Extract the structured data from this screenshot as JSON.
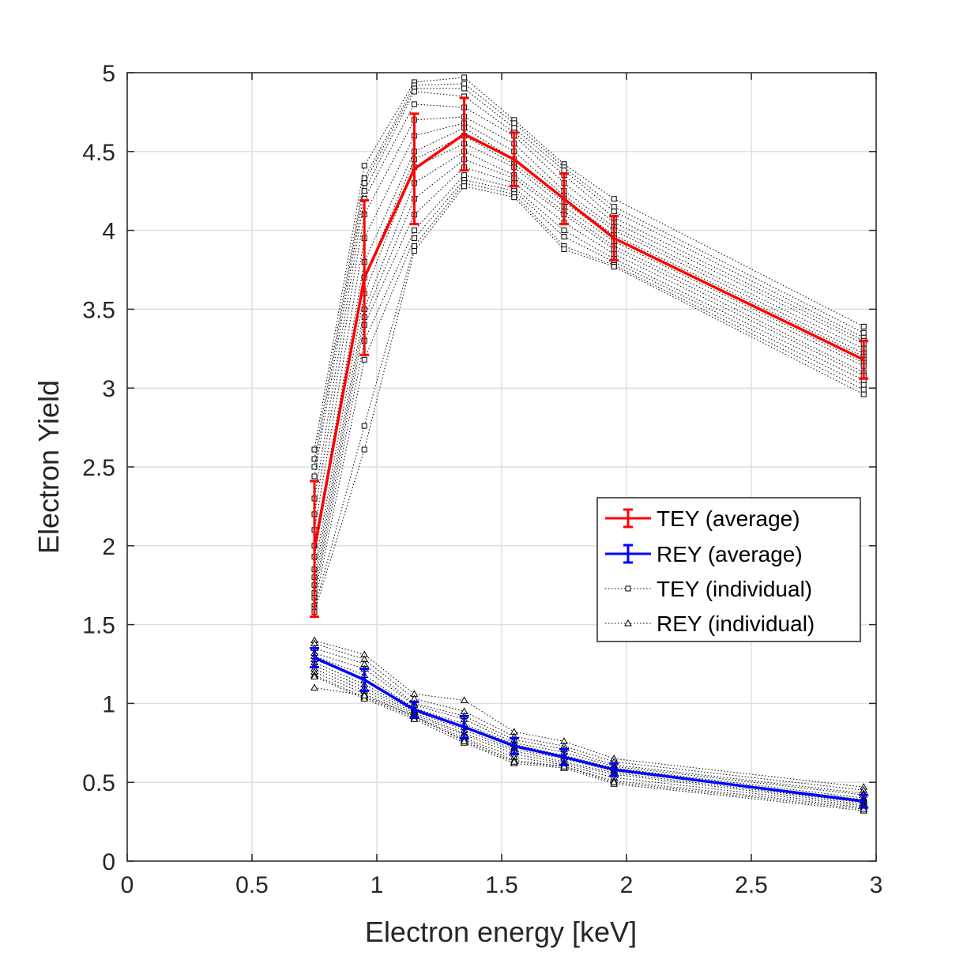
{
  "chart_data": {
    "type": "line",
    "title": "",
    "xlabel": "Electron energy [keV]",
    "ylabel": "Electron Yield",
    "xlim": [
      0,
      3
    ],
    "ylim": [
      0,
      5
    ],
    "xticks": [
      0,
      0.5,
      1,
      1.5,
      2,
      2.5,
      3
    ],
    "xtick_labels": [
      "0",
      "0.5",
      "1",
      "1.5",
      "2",
      "2.5",
      "3"
    ],
    "yticks": [
      0,
      0.5,
      1,
      1.5,
      2,
      2.5,
      3,
      3.5,
      4,
      4.5,
      5
    ],
    "ytick_labels": [
      "0",
      "0.5",
      "1",
      "1.5",
      "2",
      "2.5",
      "3",
      "3.5",
      "4",
      "4.5",
      "5"
    ],
    "grid": true,
    "legend_position": "center-right",
    "x": [
      0.75,
      0.95,
      1.15,
      1.35,
      1.55,
      1.75,
      1.95,
      2.95
    ],
    "series": [
      {
        "name": "TEY (average)",
        "color": "#ff0000",
        "style": "solid-errorbar",
        "values": [
          1.98,
          3.7,
          4.39,
          4.61,
          4.45,
          4.2,
          3.95,
          3.18
        ],
        "errors": [
          0.43,
          0.49,
          0.35,
          0.23,
          0.17,
          0.16,
          0.14,
          0.12
        ]
      },
      {
        "name": "REY (average)",
        "color": "#0000ff",
        "style": "solid-errorbar",
        "values": [
          1.29,
          1.15,
          0.96,
          0.85,
          0.73,
          0.66,
          0.58,
          0.38
        ],
        "errors": [
          0.06,
          0.07,
          0.05,
          0.07,
          0.05,
          0.05,
          0.04,
          0.04
        ]
      },
      {
        "name": "TEY (individual)",
        "color": "#000000",
        "style": "dotted-square",
        "runs": [
          [
            2.61,
            4.41,
            4.94,
            4.97,
            4.7,
            4.42,
            4.2,
            3.39
          ],
          [
            2.55,
            4.33,
            4.92,
            4.93,
            4.68,
            4.4,
            4.15,
            3.35
          ],
          [
            2.5,
            4.3,
            4.9,
            4.9,
            4.65,
            4.38,
            4.12,
            3.32
          ],
          [
            2.44,
            4.25,
            4.88,
            4.85,
            4.62,
            4.35,
            4.08,
            3.3
          ],
          [
            2.3,
            4.2,
            4.8,
            4.78,
            4.6,
            4.3,
            4.05,
            3.28
          ],
          [
            2.2,
            4.1,
            4.7,
            4.72,
            4.55,
            4.25,
            4.02,
            3.25
          ],
          [
            2.1,
            3.95,
            4.6,
            4.68,
            4.5,
            4.22,
            4.0,
            3.22
          ],
          [
            2.0,
            3.8,
            4.5,
            4.65,
            4.45,
            4.2,
            3.97,
            3.2
          ],
          [
            1.93,
            3.7,
            4.45,
            4.6,
            4.42,
            4.18,
            3.95,
            3.18
          ],
          [
            1.85,
            3.6,
            4.4,
            4.55,
            4.4,
            4.15,
            3.93,
            3.16
          ],
          [
            1.8,
            3.5,
            4.3,
            4.5,
            4.35,
            4.12,
            3.9,
            3.14
          ],
          [
            1.75,
            3.45,
            4.2,
            4.45,
            4.33,
            4.1,
            3.88,
            3.1
          ],
          [
            1.7,
            3.4,
            4.1,
            4.4,
            4.3,
            4.05,
            3.85,
            3.08
          ],
          [
            1.67,
            3.3,
            4.0,
            4.35,
            4.27,
            4.0,
            3.82,
            3.05
          ],
          [
            1.62,
            3.18,
            3.95,
            4.32,
            4.25,
            3.96,
            3.8,
            3.02
          ],
          [
            1.6,
            2.76,
            3.9,
            4.3,
            4.23,
            3.9,
            3.78,
            2.99
          ],
          [
            1.58,
            2.61,
            3.87,
            4.28,
            4.21,
            3.88,
            3.77,
            2.96
          ]
        ]
      },
      {
        "name": "REY (individual)",
        "color": "#000000",
        "style": "dotted-triangle",
        "runs": [
          [
            1.4,
            1.31,
            1.06,
            1.02,
            0.82,
            0.76,
            0.65,
            0.47
          ],
          [
            1.38,
            1.28,
            1.03,
            0.95,
            0.79,
            0.73,
            0.63,
            0.45
          ],
          [
            1.35,
            1.25,
            1.0,
            0.92,
            0.77,
            0.71,
            0.61,
            0.43
          ],
          [
            1.32,
            1.22,
            0.99,
            0.9,
            0.75,
            0.69,
            0.6,
            0.42
          ],
          [
            1.3,
            1.18,
            0.97,
            0.87,
            0.74,
            0.67,
            0.59,
            0.4
          ],
          [
            1.28,
            1.15,
            0.96,
            0.85,
            0.72,
            0.66,
            0.58,
            0.39
          ],
          [
            1.26,
            1.12,
            0.95,
            0.83,
            0.71,
            0.65,
            0.57,
            0.38
          ],
          [
            1.24,
            1.1,
            0.94,
            0.81,
            0.7,
            0.63,
            0.56,
            0.37
          ],
          [
            1.22,
            1.08,
            0.93,
            0.8,
            0.68,
            0.62,
            0.55,
            0.36
          ],
          [
            1.2,
            1.06,
            0.92,
            0.78,
            0.66,
            0.61,
            0.53,
            0.35
          ],
          [
            1.18,
            1.04,
            0.91,
            0.77,
            0.64,
            0.6,
            0.51,
            0.34
          ],
          [
            1.17,
            1.03,
            0.9,
            0.75,
            0.62,
            0.59,
            0.49,
            0.32
          ],
          [
            1.1,
            1.05,
            0.92,
            0.76,
            0.63,
            0.6,
            0.5,
            0.33
          ]
        ]
      }
    ]
  }
}
